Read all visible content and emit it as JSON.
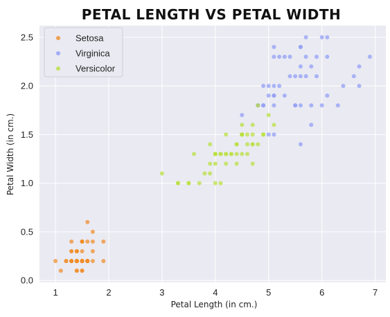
{
  "chart_data": {
    "type": "scatter",
    "title": "PETAL LENGTH VS PETAL WIDTH",
    "xlabel": "Petal Length (in cm.)",
    "ylabel": "Petal Width (in cm.)",
    "xlim": [
      0.7,
      7.2
    ],
    "ylim": [
      -0.02,
      2.62
    ],
    "xticks": [
      1,
      2,
      3,
      4,
      5,
      6,
      7
    ],
    "yticks": [
      0.0,
      0.5,
      1.0,
      1.5,
      2.0,
      2.5
    ],
    "xtick_labels": [
      "1",
      "2",
      "3",
      "4",
      "5",
      "6",
      "7"
    ],
    "ytick_labels": [
      "0.0",
      "0.5",
      "1.0",
      "1.5",
      "2.0",
      "2.5"
    ],
    "grid": true,
    "background": "#eaeaf2",
    "legend_position": "top-left",
    "series": [
      {
        "name": "Setosa",
        "color": "#f08c25",
        "points": [
          [
            1.4,
            0.2
          ],
          [
            1.4,
            0.2
          ],
          [
            1.3,
            0.2
          ],
          [
            1.5,
            0.2
          ],
          [
            1.4,
            0.2
          ],
          [
            1.7,
            0.4
          ],
          [
            1.4,
            0.3
          ],
          [
            1.5,
            0.2
          ],
          [
            1.4,
            0.2
          ],
          [
            1.5,
            0.1
          ],
          [
            1.5,
            0.2
          ],
          [
            1.6,
            0.2
          ],
          [
            1.4,
            0.1
          ],
          [
            1.1,
            0.1
          ],
          [
            1.2,
            0.2
          ],
          [
            1.5,
            0.4
          ],
          [
            1.3,
            0.4
          ],
          [
            1.4,
            0.3
          ],
          [
            1.7,
            0.3
          ],
          [
            1.5,
            0.3
          ],
          [
            1.7,
            0.2
          ],
          [
            1.5,
            0.4
          ],
          [
            1.0,
            0.2
          ],
          [
            1.7,
            0.5
          ],
          [
            1.9,
            0.2
          ],
          [
            1.6,
            0.2
          ],
          [
            1.6,
            0.4
          ],
          [
            1.5,
            0.2
          ],
          [
            1.4,
            0.2
          ],
          [
            1.6,
            0.2
          ],
          [
            1.6,
            0.2
          ],
          [
            1.5,
            0.4
          ],
          [
            1.5,
            0.1
          ],
          [
            1.4,
            0.2
          ],
          [
            1.5,
            0.2
          ],
          [
            1.2,
            0.2
          ],
          [
            1.3,
            0.2
          ],
          [
            1.4,
            0.1
          ],
          [
            1.3,
            0.2
          ],
          [
            1.5,
            0.2
          ],
          [
            1.3,
            0.3
          ],
          [
            1.3,
            0.3
          ],
          [
            1.3,
            0.2
          ],
          [
            1.6,
            0.6
          ],
          [
            1.9,
            0.4
          ],
          [
            1.4,
            0.3
          ],
          [
            1.6,
            0.2
          ],
          [
            1.4,
            0.2
          ],
          [
            1.5,
            0.2
          ],
          [
            1.4,
            0.2
          ]
        ]
      },
      {
        "name": "Virginica",
        "color": "#8f9cf5",
        "points": [
          [
            6.0,
            2.5
          ],
          [
            5.1,
            1.9
          ],
          [
            5.9,
            2.1
          ],
          [
            5.6,
            1.8
          ],
          [
            5.8,
            2.2
          ],
          [
            6.6,
            2.1
          ],
          [
            4.5,
            1.7
          ],
          [
            6.3,
            1.8
          ],
          [
            5.8,
            1.8
          ],
          [
            6.1,
            2.5
          ],
          [
            5.1,
            2.0
          ],
          [
            5.3,
            1.9
          ],
          [
            5.5,
            2.1
          ],
          [
            5.0,
            2.0
          ],
          [
            5.1,
            2.4
          ],
          [
            5.3,
            2.3
          ],
          [
            5.5,
            1.8
          ],
          [
            6.7,
            2.2
          ],
          [
            6.9,
            2.3
          ],
          [
            5.0,
            1.5
          ],
          [
            5.7,
            2.3
          ],
          [
            4.9,
            2.0
          ],
          [
            6.7,
            2.0
          ],
          [
            4.9,
            1.8
          ],
          [
            5.7,
            2.1
          ],
          [
            6.0,
            1.8
          ],
          [
            4.8,
            1.8
          ],
          [
            4.9,
            1.8
          ],
          [
            5.6,
            2.1
          ],
          [
            5.8,
            1.6
          ],
          [
            6.1,
            1.9
          ],
          [
            6.4,
            2.0
          ],
          [
            5.6,
            2.2
          ],
          [
            5.1,
            1.5
          ],
          [
            5.6,
            1.4
          ],
          [
            6.1,
            2.3
          ],
          [
            5.6,
            2.4
          ],
          [
            5.5,
            1.8
          ],
          [
            4.8,
            1.8
          ],
          [
            5.4,
            2.1
          ],
          [
            5.6,
            2.4
          ],
          [
            5.1,
            2.3
          ],
          [
            5.1,
            1.9
          ],
          [
            5.9,
            2.3
          ],
          [
            5.7,
            2.5
          ],
          [
            5.2,
            2.3
          ],
          [
            5.0,
            1.9
          ],
          [
            5.2,
            2.0
          ],
          [
            5.4,
            2.3
          ],
          [
            5.1,
            1.8
          ]
        ]
      },
      {
        "name": "Versicolor",
        "color": "#b8e03c",
        "points": [
          [
            4.7,
            1.4
          ],
          [
            4.5,
            1.5
          ],
          [
            4.9,
            1.5
          ],
          [
            4.0,
            1.3
          ],
          [
            4.6,
            1.5
          ],
          [
            4.5,
            1.3
          ],
          [
            4.7,
            1.6
          ],
          [
            3.3,
            1.0
          ],
          [
            4.6,
            1.3
          ],
          [
            3.9,
            1.4
          ],
          [
            3.5,
            1.0
          ],
          [
            4.2,
            1.5
          ],
          [
            4.0,
            1.0
          ],
          [
            4.7,
            1.4
          ],
          [
            3.6,
            1.3
          ],
          [
            4.4,
            1.4
          ],
          [
            4.5,
            1.5
          ],
          [
            4.1,
            1.0
          ],
          [
            4.5,
            1.5
          ],
          [
            3.9,
            1.1
          ],
          [
            4.8,
            1.8
          ],
          [
            4.0,
            1.3
          ],
          [
            4.9,
            1.5
          ],
          [
            4.7,
            1.2
          ],
          [
            4.3,
            1.3
          ],
          [
            4.4,
            1.4
          ],
          [
            4.8,
            1.4
          ],
          [
            5.0,
            1.7
          ],
          [
            4.5,
            1.5
          ],
          [
            3.5,
            1.0
          ],
          [
            3.8,
            1.1
          ],
          [
            3.7,
            1.0
          ],
          [
            3.9,
            1.2
          ],
          [
            5.1,
            1.6
          ],
          [
            4.5,
            1.5
          ],
          [
            4.5,
            1.6
          ],
          [
            4.7,
            1.5
          ],
          [
            4.4,
            1.3
          ],
          [
            4.1,
            1.3
          ],
          [
            4.0,
            1.3
          ],
          [
            4.4,
            1.2
          ],
          [
            4.6,
            1.4
          ],
          [
            4.0,
            1.2
          ],
          [
            3.3,
            1.0
          ],
          [
            4.2,
            1.3
          ],
          [
            4.2,
            1.2
          ],
          [
            4.2,
            1.3
          ],
          [
            4.3,
            1.3
          ],
          [
            3.0,
            1.1
          ],
          [
            4.1,
            1.3
          ]
        ]
      }
    ]
  }
}
